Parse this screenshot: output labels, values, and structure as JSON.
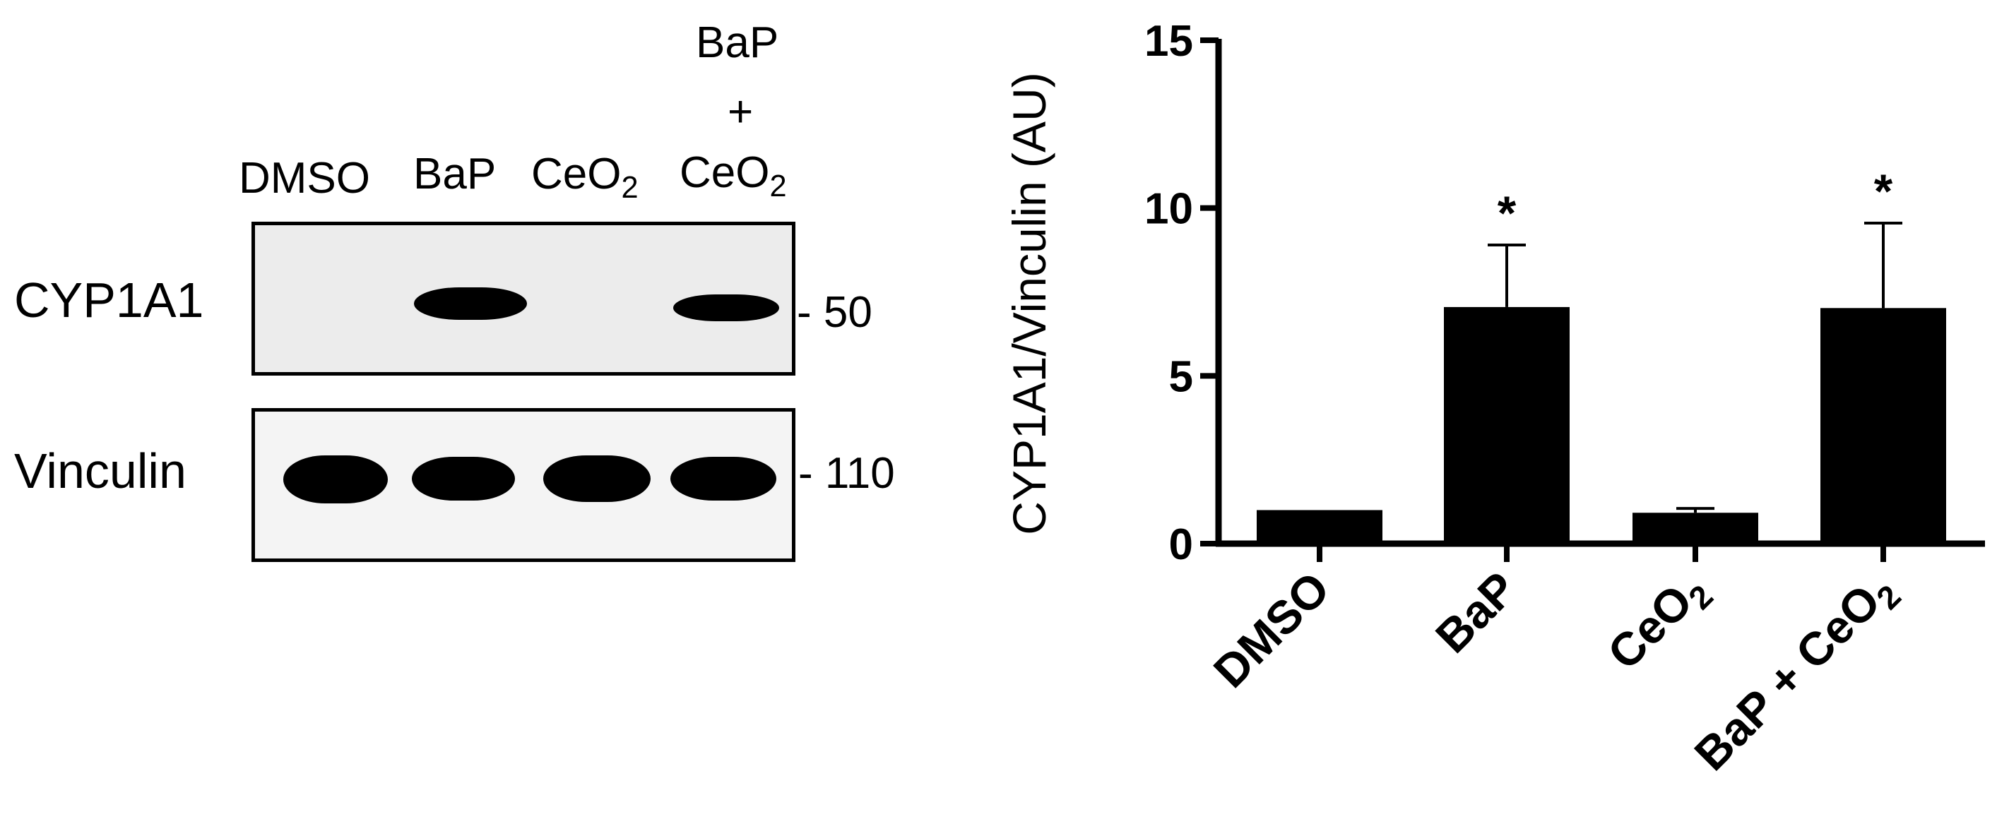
{
  "blot": {
    "lanes": [
      {
        "main": "DMSO",
        "sub": ""
      },
      {
        "main": "BaP",
        "sub": ""
      },
      {
        "main": "CeO",
        "sub": "2"
      },
      {
        "main": "CeO",
        "sub": "2"
      }
    ],
    "lane4_top": "BaP",
    "lane4_plus": "+",
    "rows": [
      {
        "label": "CYP1A1",
        "mw": "- 50"
      },
      {
        "label": "Vinculin",
        "mw": "- 110"
      }
    ]
  },
  "chart_data": {
    "type": "bar",
    "categories": [
      "DMSO",
      "BaP",
      "CeO2",
      "BaP + CeO2"
    ],
    "values": [
      1.0,
      7.05,
      0.92,
      7.02
    ],
    "error_upper": [
      0,
      8.9,
      1.05,
      9.55
    ],
    "significance": [
      "",
      "*",
      "",
      "*"
    ],
    "title": "",
    "xlabel": "",
    "ylabel": "CYP1A1/Vinculin (AU)",
    "ylim": [
      0,
      15
    ],
    "yticks": [
      "0",
      "5",
      "10",
      "15"
    ],
    "bar_color": "#000000",
    "grid": false,
    "legend": "none"
  }
}
